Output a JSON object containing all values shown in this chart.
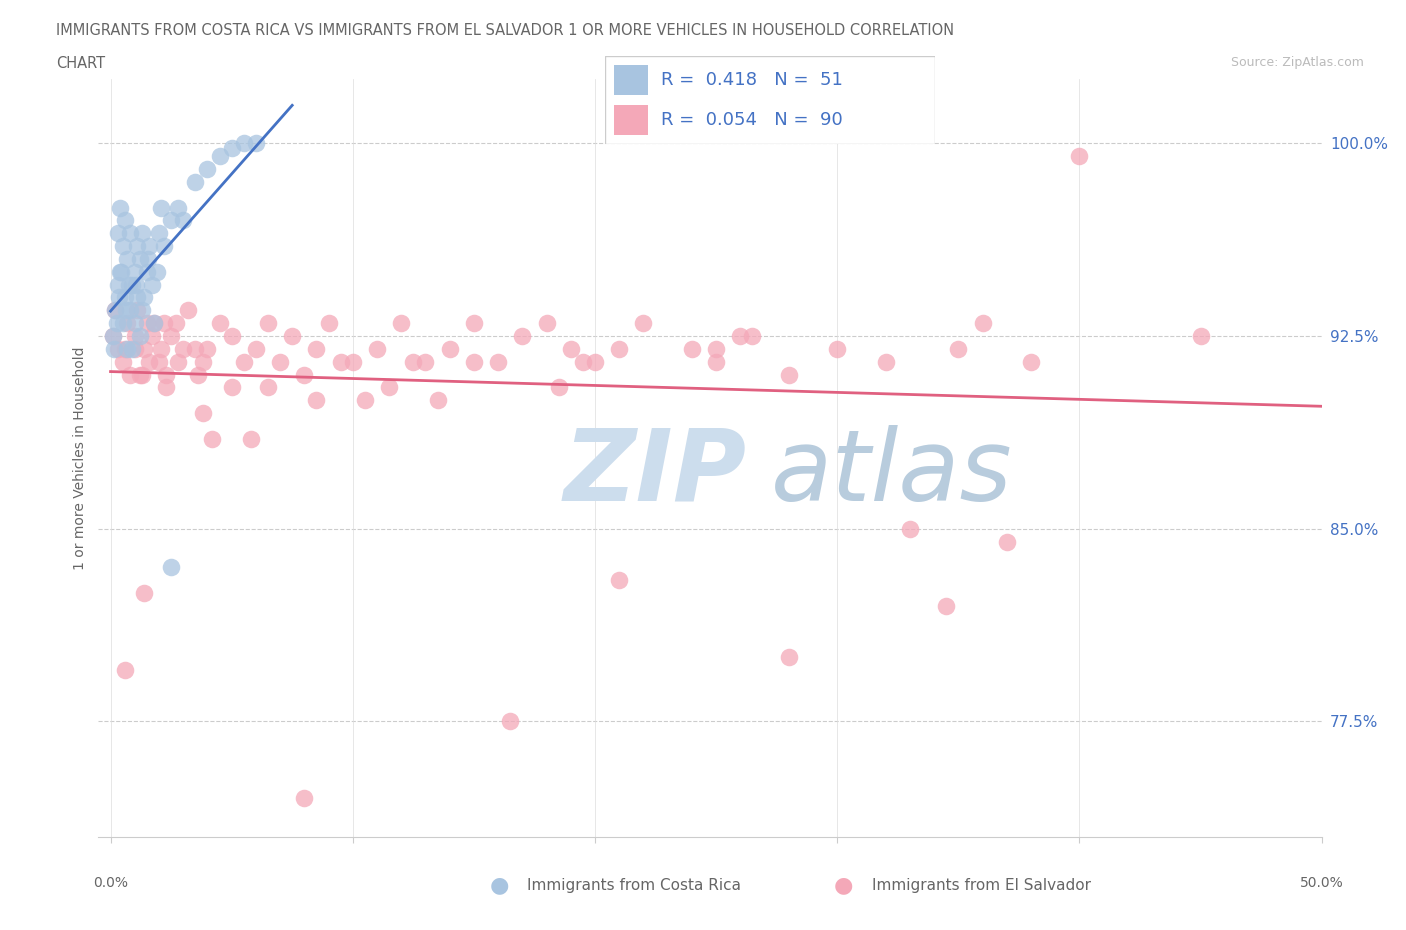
{
  "title_line1": "IMMIGRANTS FROM COSTA RICA VS IMMIGRANTS FROM EL SALVADOR 1 OR MORE VEHICLES IN HOUSEHOLD CORRELATION",
  "title_line2": "CHART",
  "source": "Source: ZipAtlas.com",
  "ylabel": "1 or more Vehicles in Household",
  "xlim": [
    -0.5,
    50.0
  ],
  "ylim": [
    73.0,
    102.5
  ],
  "yticks": [
    77.5,
    85.0,
    92.5,
    100.0
  ],
  "ytick_labels": [
    "77.5%",
    "85.0%",
    "92.5%",
    "100.0%"
  ],
  "costa_rica_color": "#a8c4e0",
  "el_salvador_color": "#f4a8b8",
  "trendline_costa_rica": "#4472c4",
  "trendline_el_salvador": "#e06080",
  "r_costa_rica": 0.418,
  "n_costa_rica": 51,
  "r_el_salvador": 0.054,
  "n_el_salvador": 90,
  "legend_text_color": "#4472c4",
  "watermark_color": "#ccdded",
  "costa_rica_x": [
    0.1,
    0.2,
    0.3,
    0.3,
    0.4,
    0.4,
    0.5,
    0.5,
    0.6,
    0.6,
    0.7,
    0.7,
    0.8,
    0.8,
    0.9,
    0.9,
    1.0,
    1.0,
    1.1,
    1.1,
    1.2,
    1.2,
    1.3,
    1.3,
    1.4,
    1.5,
    1.6,
    1.7,
    1.8,
    1.9,
    2.0,
    2.1,
    2.2,
    2.5,
    2.8,
    3.0,
    3.5,
    4.0,
    4.5,
    5.0,
    5.5,
    6.0,
    0.15,
    0.25,
    0.35,
    0.45,
    0.65,
    0.75,
    1.05,
    1.55,
    2.5
  ],
  "costa_rica_y": [
    92.5,
    93.5,
    94.5,
    96.5,
    95.0,
    97.5,
    93.0,
    96.0,
    94.0,
    97.0,
    92.0,
    95.5,
    93.5,
    96.5,
    94.5,
    92.0,
    95.0,
    93.0,
    94.0,
    96.0,
    92.5,
    95.5,
    93.5,
    96.5,
    94.0,
    95.0,
    96.0,
    94.5,
    93.0,
    95.0,
    96.5,
    97.5,
    96.0,
    97.0,
    97.5,
    97.0,
    98.5,
    99.0,
    99.5,
    99.8,
    100.0,
    100.0,
    92.0,
    93.0,
    94.0,
    95.0,
    93.5,
    94.5,
    94.5,
    95.5,
    83.5
  ],
  "el_salvador_x": [
    0.1,
    0.2,
    0.3,
    0.5,
    0.6,
    0.7,
    0.8,
    1.0,
    1.1,
    1.2,
    1.4,
    1.5,
    1.6,
    1.7,
    1.8,
    2.0,
    2.1,
    2.2,
    2.3,
    2.5,
    2.7,
    2.8,
    3.0,
    3.2,
    3.5,
    3.8,
    4.0,
    4.5,
    5.0,
    5.5,
    6.0,
    6.5,
    7.0,
    7.5,
    8.0,
    8.5,
    9.0,
    10.0,
    11.0,
    12.0,
    13.0,
    14.0,
    15.0,
    16.0,
    17.0,
    18.0,
    19.0,
    20.0,
    21.0,
    22.0,
    24.0,
    25.0,
    26.0,
    28.0,
    30.0,
    32.0,
    35.0,
    36.0,
    38.0,
    40.0,
    45.0,
    2.3,
    3.8,
    5.8,
    8.5,
    12.5,
    18.5,
    25.0,
    33.0,
    1.3,
    4.2,
    6.5,
    9.5,
    13.5,
    19.5,
    26.5,
    34.5,
    1.0,
    5.0,
    10.5,
    15.0,
    21.0,
    28.0,
    37.0,
    0.6,
    1.4,
    3.6,
    8.0,
    11.5,
    16.5
  ],
  "el_salvador_y": [
    92.5,
    93.5,
    92.0,
    91.5,
    92.0,
    93.0,
    91.0,
    92.5,
    93.5,
    91.0,
    92.0,
    93.0,
    91.5,
    92.5,
    93.0,
    91.5,
    92.0,
    93.0,
    91.0,
    92.5,
    93.0,
    91.5,
    92.0,
    93.5,
    92.0,
    91.5,
    92.0,
    93.0,
    92.5,
    91.5,
    92.0,
    93.0,
    91.5,
    92.5,
    91.0,
    92.0,
    93.0,
    91.5,
    92.0,
    93.0,
    91.5,
    92.0,
    93.0,
    91.5,
    92.5,
    93.0,
    92.0,
    91.5,
    92.0,
    93.0,
    92.0,
    91.5,
    92.5,
    91.0,
    92.0,
    91.5,
    92.0,
    93.0,
    91.5,
    99.5,
    92.5,
    90.5,
    89.5,
    88.5,
    90.0,
    91.5,
    90.5,
    92.0,
    85.0,
    91.0,
    88.5,
    90.5,
    91.5,
    90.0,
    91.5,
    92.5,
    82.0,
    92.0,
    90.5,
    90.0,
    91.5,
    83.0,
    80.0,
    84.5,
    79.5,
    82.5,
    91.0,
    74.5,
    90.5,
    77.5
  ]
}
